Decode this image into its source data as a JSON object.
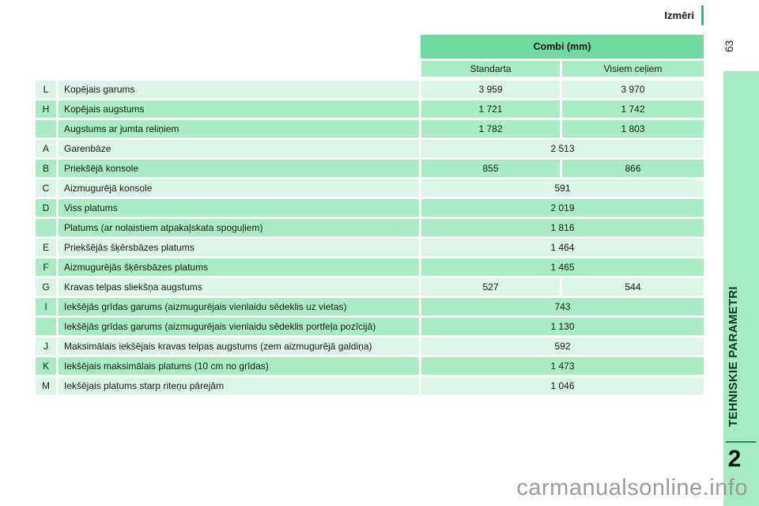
{
  "header": {
    "title": "Izmēri",
    "page_number": "63"
  },
  "table": {
    "title": "Combi (mm)",
    "columns": [
      "Standarta",
      "Visiem ceļiem"
    ],
    "rows": [
      {
        "letter": "L",
        "label": "Kopējais garums",
        "values": [
          "3 959",
          "3 970"
        ],
        "shade": "light"
      },
      {
        "letter": "H",
        "label": "Kopējais augstums",
        "values": [
          "1 721",
          "1 742"
        ],
        "shade": "green"
      },
      {
        "letter": "",
        "label": "Augstums ar jumta reliņiem",
        "values": [
          "1 782",
          "1 803"
        ],
        "shade": "green"
      },
      {
        "letter": "A",
        "label": "Garenbāze",
        "values": [
          "2 513"
        ],
        "shade": "light"
      },
      {
        "letter": "B",
        "label": "Priekšējā konsole",
        "values": [
          "855",
          "866"
        ],
        "shade": "green"
      },
      {
        "letter": "C",
        "label": "Aizmugurējā konsole",
        "values": [
          "591"
        ],
        "shade": "light"
      },
      {
        "letter": "D",
        "label": "Viss platums",
        "values": [
          "2 019"
        ],
        "shade": "green"
      },
      {
        "letter": "",
        "label": "Platums (ar nolaistiem atpakaļskata spoguļiem)",
        "values": [
          "1 816"
        ],
        "shade": "green"
      },
      {
        "letter": "E",
        "label": "Priekšējās šķērsbāzes platums",
        "values": [
          "1 464"
        ],
        "shade": "light"
      },
      {
        "letter": "F",
        "label": "Aizmugurējās šķērsbāzes platums",
        "values": [
          "1 465"
        ],
        "shade": "green"
      },
      {
        "letter": "G",
        "label": "Kravas telpas sliekšņa augstums",
        "values": [
          "527",
          "544"
        ],
        "shade": "light"
      },
      {
        "letter": "I",
        "label": "Iekšējās grīdas garums (aizmugurējais vienlaidu sēdeklis uz vietas)",
        "values": [
          "743"
        ],
        "shade": "green"
      },
      {
        "letter": "",
        "label": "Iekšējās grīdas garums (aizmugurējais vienlaidu sēdeklis portfeļa pozīcijā)",
        "values": [
          "1 130"
        ],
        "shade": "green"
      },
      {
        "letter": "J",
        "label": "Maksimālais iekšējais kravas telpas augstums (zem aizmugurējā galdiņa)",
        "values": [
          "592"
        ],
        "shade": "light"
      },
      {
        "letter": "K",
        "label": "Iekšējais maksimālais platums (10 cm no grīdas)",
        "values": [
          "1 473"
        ],
        "shade": "green"
      },
      {
        "letter": "M",
        "label": "Iekšējais platums starp riteņu pārejām",
        "values": [
          "1 046"
        ],
        "shade": "light"
      }
    ]
  },
  "sidebar": {
    "section_title": "TEHNISKIE PARAMETRI",
    "chapter_number": "2"
  },
  "watermark": "carmanualsonline.info",
  "colors": {
    "header_green": "#70db9e",
    "row_green": "#a9ecc4",
    "row_light": "#dbf6e7",
    "panel_green": "#a5ebc1",
    "accent_line": "#35b879",
    "separator": "#1f8a55"
  }
}
